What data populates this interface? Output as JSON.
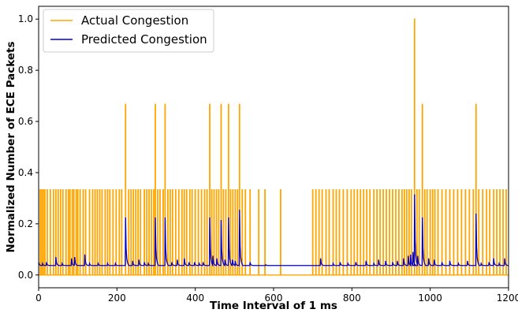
{
  "chart_data": {
    "type": "line",
    "title": "",
    "xlabel": "Time Interval of 1 ms",
    "ylabel": "Normalized Number of ECE Packets",
    "xlim": [
      0,
      1200
    ],
    "ylim": [
      -0.05,
      1.05
    ],
    "xticks": [
      0,
      200,
      400,
      600,
      800,
      1000,
      1200
    ],
    "yticks": [
      0.0,
      0.2,
      0.4,
      0.6,
      0.8,
      1.0
    ],
    "xtick_labels": [
      "0",
      "200",
      "400",
      "600",
      "800",
      "1000",
      "1200"
    ],
    "ytick_labels": [
      "0.0",
      "0.2",
      "0.4",
      "0.6",
      "0.8",
      "1.0"
    ],
    "grid": false,
    "legend_position": "top-left",
    "series": [
      {
        "name": "Actual Congestion",
        "color": "#ffa500",
        "baseline": 0.0,
        "spikes": [
          [
            4,
            0.333
          ],
          [
            8,
            0.333
          ],
          [
            12,
            0.333
          ],
          [
            16,
            0.333
          ],
          [
            22,
            0.333
          ],
          [
            30,
            0.333
          ],
          [
            38,
            0.333
          ],
          [
            44,
            0.333
          ],
          [
            50,
            0.333
          ],
          [
            56,
            0.333
          ],
          [
            62,
            0.333
          ],
          [
            70,
            0.333
          ],
          [
            76,
            0.333
          ],
          [
            80,
            0.333
          ],
          [
            86,
            0.333
          ],
          [
            90,
            0.333
          ],
          [
            96,
            0.333
          ],
          [
            100,
            0.333
          ],
          [
            106,
            0.333
          ],
          [
            114,
            0.333
          ],
          [
            120,
            0.333
          ],
          [
            130,
            0.333
          ],
          [
            138,
            0.333
          ],
          [
            144,
            0.333
          ],
          [
            150,
            0.333
          ],
          [
            156,
            0.333
          ],
          [
            162,
            0.333
          ],
          [
            170,
            0.333
          ],
          [
            176,
            0.333
          ],
          [
            182,
            0.333
          ],
          [
            190,
            0.333
          ],
          [
            198,
            0.333
          ],
          [
            206,
            0.333
          ],
          [
            212,
            0.333
          ],
          [
            222,
            0.667
          ],
          [
            230,
            0.333
          ],
          [
            236,
            0.333
          ],
          [
            242,
            0.333
          ],
          [
            248,
            0.333
          ],
          [
            254,
            0.333
          ],
          [
            260,
            0.333
          ],
          [
            270,
            0.333
          ],
          [
            276,
            0.333
          ],
          [
            282,
            0.333
          ],
          [
            288,
            0.333
          ],
          [
            294,
            0.333
          ],
          [
            298,
            0.667
          ],
          [
            304,
            0.333
          ],
          [
            310,
            0.333
          ],
          [
            318,
            0.333
          ],
          [
            323,
            0.667
          ],
          [
            330,
            0.333
          ],
          [
            336,
            0.333
          ],
          [
            342,
            0.333
          ],
          [
            350,
            0.333
          ],
          [
            358,
            0.333
          ],
          [
            366,
            0.333
          ],
          [
            372,
            0.333
          ],
          [
            378,
            0.333
          ],
          [
            386,
            0.333
          ],
          [
            392,
            0.333
          ],
          [
            400,
            0.333
          ],
          [
            408,
            0.333
          ],
          [
            416,
            0.333
          ],
          [
            424,
            0.333
          ],
          [
            430,
            0.333
          ],
          [
            437,
            0.667
          ],
          [
            442,
            0.333
          ],
          [
            448,
            0.333
          ],
          [
            454,
            0.333
          ],
          [
            460,
            0.333
          ],
          [
            466,
            0.667
          ],
          [
            472,
            0.333
          ],
          [
            478,
            0.333
          ],
          [
            485,
            0.667
          ],
          [
            490,
            0.333
          ],
          [
            496,
            0.333
          ],
          [
            502,
            0.333
          ],
          [
            508,
            0.333
          ],
          [
            513,
            0.667
          ],
          [
            520,
            0.333
          ],
          [
            528,
            0.333
          ],
          [
            540,
            0.333
          ],
          [
            562,
            0.333
          ],
          [
            578,
            0.333
          ],
          [
            618,
            0.333
          ],
          [
            700,
            0.333
          ],
          [
            708,
            0.333
          ],
          [
            716,
            0.333
          ],
          [
            724,
            0.333
          ],
          [
            734,
            0.333
          ],
          [
            742,
            0.333
          ],
          [
            752,
            0.333
          ],
          [
            760,
            0.333
          ],
          [
            768,
            0.333
          ],
          [
            778,
            0.333
          ],
          [
            788,
            0.333
          ],
          [
            798,
            0.333
          ],
          [
            806,
            0.333
          ],
          [
            814,
            0.333
          ],
          [
            822,
            0.333
          ],
          [
            830,
            0.333
          ],
          [
            838,
            0.333
          ],
          [
            846,
            0.333
          ],
          [
            856,
            0.333
          ],
          [
            864,
            0.333
          ],
          [
            872,
            0.333
          ],
          [
            880,
            0.333
          ],
          [
            888,
            0.333
          ],
          [
            896,
            0.333
          ],
          [
            904,
            0.333
          ],
          [
            912,
            0.333
          ],
          [
            920,
            0.333
          ],
          [
            928,
            0.333
          ],
          [
            934,
            0.333
          ],
          [
            940,
            0.333
          ],
          [
            946,
            0.333
          ],
          [
            952,
            0.333
          ],
          [
            960,
            1.0
          ],
          [
            966,
            0.333
          ],
          [
            972,
            0.333
          ],
          [
            980,
            0.667
          ],
          [
            986,
            0.333
          ],
          [
            992,
            0.333
          ],
          [
            1000,
            0.333
          ],
          [
            1006,
            0.333
          ],
          [
            1012,
            0.333
          ],
          [
            1020,
            0.333
          ],
          [
            1030,
            0.333
          ],
          [
            1040,
            0.333
          ],
          [
            1050,
            0.333
          ],
          [
            1060,
            0.333
          ],
          [
            1070,
            0.333
          ],
          [
            1080,
            0.333
          ],
          [
            1090,
            0.333
          ],
          [
            1100,
            0.333
          ],
          [
            1110,
            0.333
          ],
          [
            1117,
            0.667
          ],
          [
            1124,
            0.333
          ],
          [
            1134,
            0.333
          ],
          [
            1144,
            0.333
          ],
          [
            1152,
            0.333
          ],
          [
            1162,
            0.333
          ],
          [
            1170,
            0.333
          ],
          [
            1178,
            0.333
          ],
          [
            1186,
            0.333
          ],
          [
            1194,
            0.333
          ]
        ]
      },
      {
        "name": "Predicted Congestion",
        "color": "#0000cd",
        "baseline": 0.037,
        "spikes": [
          [
            0,
            0.05
          ],
          [
            10,
            0.045
          ],
          [
            20,
            0.05
          ],
          [
            44,
            0.07
          ],
          [
            60,
            0.045
          ],
          [
            84,
            0.065
          ],
          [
            92,
            0.07
          ],
          [
            118,
            0.08
          ],
          [
            130,
            0.045
          ],
          [
            152,
            0.045
          ],
          [
            176,
            0.045
          ],
          [
            196,
            0.045
          ],
          [
            222,
            0.225
          ],
          [
            240,
            0.055
          ],
          [
            256,
            0.06
          ],
          [
            270,
            0.05
          ],
          [
            280,
            0.045
          ],
          [
            298,
            0.225
          ],
          [
            323,
            0.225
          ],
          [
            340,
            0.05
          ],
          [
            354,
            0.06
          ],
          [
            372,
            0.065
          ],
          [
            384,
            0.05
          ],
          [
            398,
            0.05
          ],
          [
            410,
            0.045
          ],
          [
            420,
            0.05
          ],
          [
            437,
            0.225
          ],
          [
            445,
            0.075
          ],
          [
            455,
            0.065
          ],
          [
            466,
            0.215
          ],
          [
            476,
            0.06
          ],
          [
            485,
            0.225
          ],
          [
            495,
            0.06
          ],
          [
            502,
            0.055
          ],
          [
            513,
            0.255
          ],
          [
            540,
            0.05
          ],
          [
            580,
            0.04
          ],
          [
            720,
            0.065
          ],
          [
            752,
            0.045
          ],
          [
            770,
            0.05
          ],
          [
            790,
            0.045
          ],
          [
            810,
            0.05
          ],
          [
            836,
            0.055
          ],
          [
            856,
            0.045
          ],
          [
            868,
            0.06
          ],
          [
            886,
            0.055
          ],
          [
            904,
            0.05
          ],
          [
            916,
            0.055
          ],
          [
            932,
            0.065
          ],
          [
            944,
            0.075
          ],
          [
            950,
            0.08
          ],
          [
            956,
            0.09
          ],
          [
            960,
            0.315
          ],
          [
            968,
            0.075
          ],
          [
            980,
            0.225
          ],
          [
            996,
            0.065
          ],
          [
            1010,
            0.06
          ],
          [
            1030,
            0.05
          ],
          [
            1050,
            0.055
          ],
          [
            1072,
            0.045
          ],
          [
            1095,
            0.055
          ],
          [
            1117,
            0.24
          ],
          [
            1130,
            0.045
          ],
          [
            1150,
            0.05
          ],
          [
            1162,
            0.065
          ],
          [
            1176,
            0.045
          ],
          [
            1190,
            0.065
          ]
        ]
      }
    ]
  }
}
